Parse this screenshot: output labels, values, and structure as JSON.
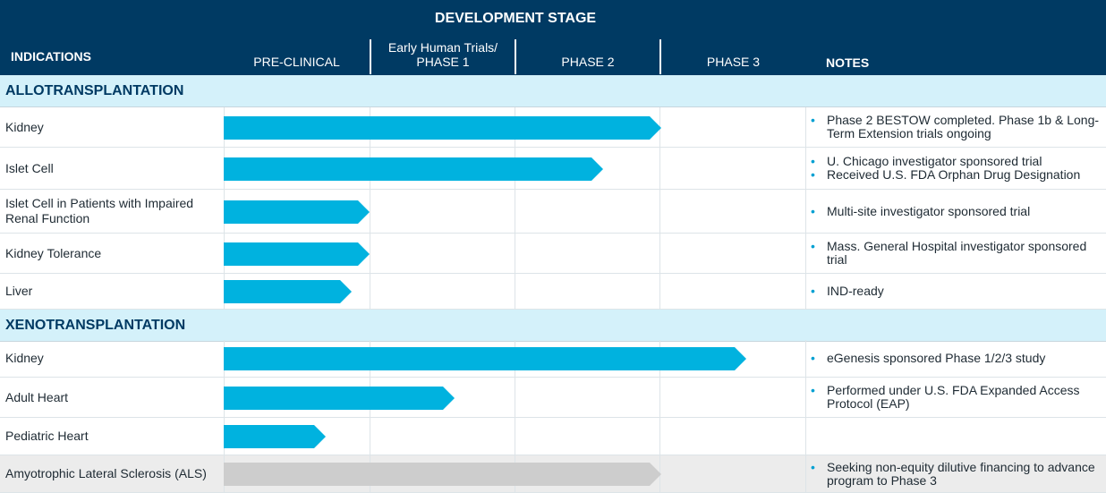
{
  "header": {
    "title": "DEVELOPMENT STAGE",
    "indications": "INDICATIONS",
    "pre_clinical": "PRE-CLINICAL",
    "phase1_line1": "Early Human Trials/",
    "phase1_line2": "PHASE 1",
    "phase2": "PHASE 2",
    "phase3": "PHASE 3",
    "notes": "NOTES"
  },
  "colors": {
    "header_bg": "#003a63",
    "section_bg": "#d4f1fa",
    "bar_active": "#00b2df",
    "bar_inactive": "#cdcdcd",
    "bullet": "#00a0d2"
  },
  "chart_data": {
    "type": "bar",
    "stages": [
      "PRE-CLINICAL",
      "PHASE 1",
      "PHASE 2",
      "PHASE 3"
    ],
    "scale_note": "progress values measured in stage units (0-4)",
    "sections": [
      {
        "name": "ALLOTRANSPLANTATION",
        "rows": [
          {
            "indication": "Kidney",
            "progress": 3.0,
            "color": "#00b2df",
            "notes": [
              "Phase 2 BESTOW completed. Phase 1b & Long-Term Extension trials ongoing"
            ]
          },
          {
            "indication": "Islet Cell",
            "progress": 2.6,
            "color": "#00b2df",
            "notes": [
              "U. Chicago investigator sponsored trial",
              "Received U.S. FDA Orphan Drug Designation"
            ]
          },
          {
            "indication": "Islet Cell in Patients with Impaired Renal Function",
            "progress": 1.0,
            "color": "#00b2df",
            "notes": [
              "Multi-site investigator sponsored trial"
            ]
          },
          {
            "indication": "Kidney Tolerance",
            "progress": 1.0,
            "color": "#00b2df",
            "notes": [
              "Mass. General Hospital investigator sponsored trial"
            ]
          },
          {
            "indication": "Liver",
            "progress": 0.88,
            "color": "#00b2df",
            "notes": [
              "IND-ready"
            ]
          }
        ]
      },
      {
        "name": "XENOTRANSPLANTATION",
        "rows": [
          {
            "indication": "Kidney",
            "progress": 3.58,
            "color": "#00b2df",
            "notes": [
              "eGenesis sponsored Phase 1/2/3 study"
            ]
          },
          {
            "indication": "Adult Heart",
            "progress": 1.58,
            "color": "#00b2df",
            "notes": [
              "Performed under U.S. FDA Expanded  Access Protocol (EAP)"
            ]
          },
          {
            "indication": "Pediatric Heart",
            "progress": 0.7,
            "color": "#00b2df",
            "notes": []
          },
          {
            "indication": "Amyotrophic Lateral Sclerosis (ALS)",
            "progress": 3.0,
            "color": "#cdcdcd",
            "notes": [
              "Seeking non-equity dilutive financing to advance program to Phase 3"
            ]
          }
        ]
      }
    ]
  }
}
